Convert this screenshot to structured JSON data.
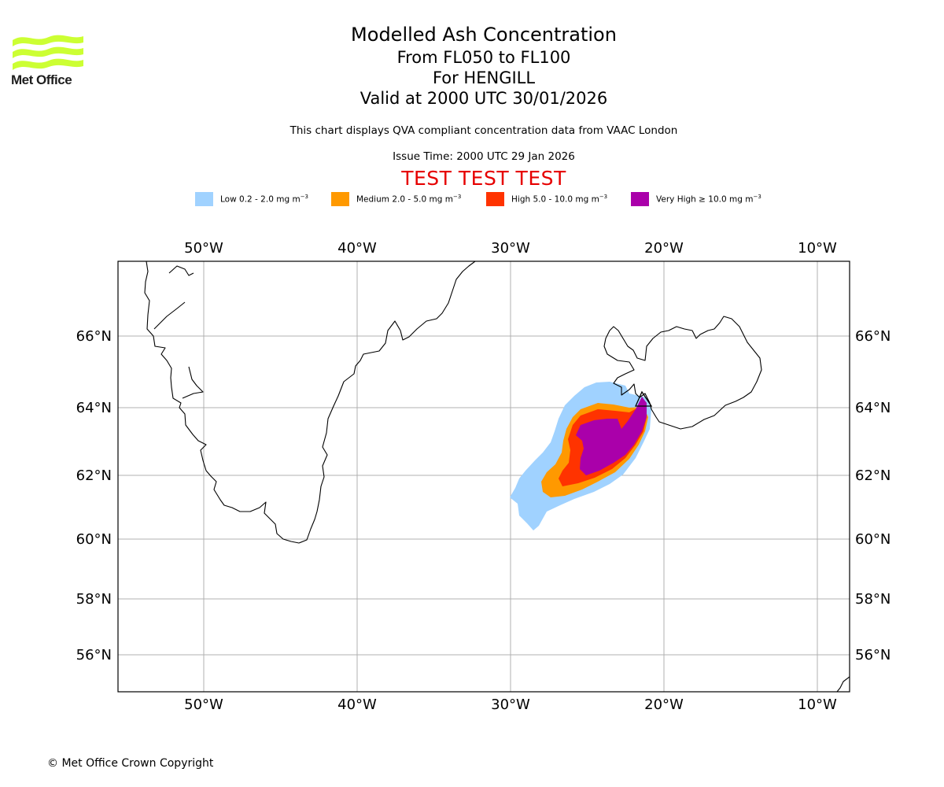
{
  "header": {
    "title": "Modelled Ash Concentration",
    "levels": "From FL050 to FL100",
    "volcano": "For HENGILL",
    "valid": "Valid at 2000 UTC 30/01/2026",
    "qva_note": "This chart displays QVA compliant concentration data from VAAC London",
    "issue_time": "Issue Time: 2000 UTC 29 Jan 2026",
    "test_banner": "TEST TEST TEST"
  },
  "logo": {
    "text": "Met Office",
    "color": "#ccff33"
  },
  "legend": [
    {
      "label": "Low 0.2 - 2.0 mg m",
      "exp": "−3",
      "color": "#a0d2ff"
    },
    {
      "label": "Medium 2.0 - 5.0 mg m",
      "exp": "−3",
      "color": "#ff9900"
    },
    {
      "label": "High 5.0 - 10.0 mg m",
      "exp": "−3",
      "color": "#ff3300"
    },
    {
      "label": "Very High  ≥  10.0 mg m",
      "exp": "−3",
      "color": "#aa00aa"
    }
  ],
  "map": {
    "lon_ticks": [
      "50°W",
      "40°W",
      "30°W",
      "20°W",
      "10°W"
    ],
    "lat_ticks": [
      "66°N",
      "64°N",
      "62°N",
      "60°N",
      "58°N",
      "56°N"
    ],
    "grid_color": "#b0b0b0"
  },
  "footer": {
    "copyright": "© Met Office Crown Copyright"
  }
}
